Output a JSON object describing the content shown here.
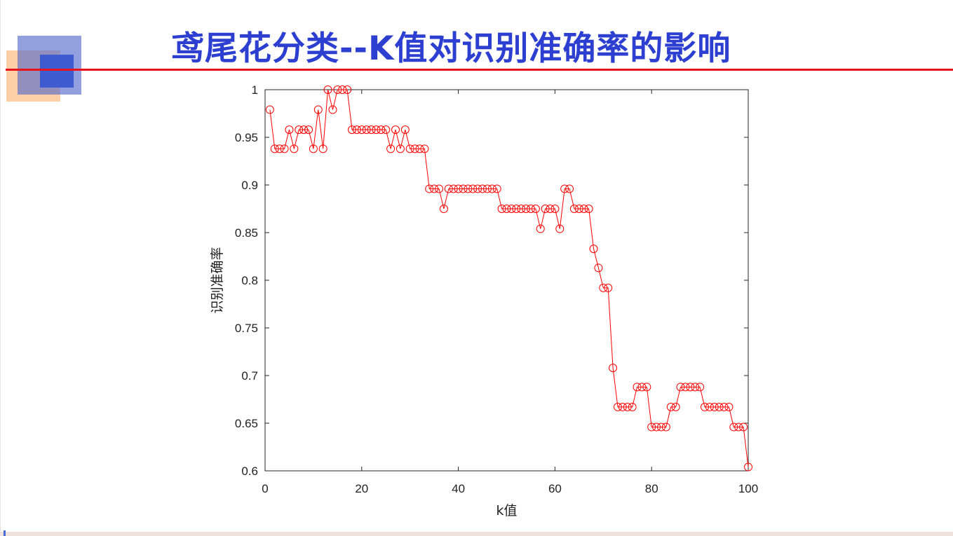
{
  "slide": {
    "title": "鸢尾花分类--K值对识别准确率的影响",
    "accent_color": "#e8141c",
    "title_color": "#2c3fd0"
  },
  "chart_data": {
    "type": "line",
    "title": "",
    "xlabel": "k值",
    "ylabel": "识别准确率",
    "xlim": [
      0,
      100
    ],
    "ylim": [
      0.6,
      1
    ],
    "x_ticks": [
      "0",
      "20",
      "40",
      "60",
      "80",
      "100"
    ],
    "y_ticks": [
      "0.6",
      "0.65",
      "0.7",
      "0.75",
      "0.8",
      "0.85",
      "0.9",
      "0.95",
      "1"
    ],
    "grid": false,
    "marker": "circle",
    "series_color": "#ff0000",
    "series": [
      {
        "x": [
          1,
          2,
          3,
          4,
          5,
          6,
          7,
          8,
          9,
          10,
          11,
          12,
          13,
          14,
          15,
          16,
          17,
          18,
          19,
          20,
          21,
          22,
          23,
          24,
          25,
          26,
          27,
          28,
          29,
          30,
          31,
          32,
          33,
          34,
          35,
          36,
          37,
          38,
          39,
          40,
          41,
          42,
          43,
          44,
          45,
          46,
          47,
          48,
          49,
          50,
          51,
          52,
          53,
          54,
          55,
          56,
          57,
          58,
          59,
          60,
          61,
          62,
          63,
          64,
          65,
          66,
          67,
          68,
          69,
          70,
          71,
          72,
          73,
          74,
          75,
          76,
          77,
          78,
          79,
          80,
          81,
          82,
          83,
          84,
          85,
          86,
          87,
          88,
          89,
          90,
          91,
          92,
          93,
          94,
          95,
          96,
          97,
          98,
          99,
          100
        ],
        "values": [
          0.979,
          0.938,
          0.938,
          0.938,
          0.958,
          0.938,
          0.958,
          0.958,
          0.958,
          0.938,
          0.979,
          0.938,
          1.0,
          0.979,
          1.0,
          1.0,
          1.0,
          0.958,
          0.958,
          0.958,
          0.958,
          0.958,
          0.958,
          0.958,
          0.958,
          0.938,
          0.958,
          0.938,
          0.958,
          0.938,
          0.938,
          0.938,
          0.938,
          0.896,
          0.896,
          0.896,
          0.875,
          0.896,
          0.896,
          0.896,
          0.896,
          0.896,
          0.896,
          0.896,
          0.896,
          0.896,
          0.896,
          0.896,
          0.875,
          0.875,
          0.875,
          0.875,
          0.875,
          0.875,
          0.875,
          0.875,
          0.854,
          0.875,
          0.875,
          0.875,
          0.854,
          0.896,
          0.896,
          0.875,
          0.875,
          0.875,
          0.875,
          0.833,
          0.813,
          0.792,
          0.792,
          0.708,
          0.667,
          0.667,
          0.667,
          0.667,
          0.688,
          0.688,
          0.688,
          0.646,
          0.646,
          0.646,
          0.646,
          0.667,
          0.667,
          0.688,
          0.688,
          0.688,
          0.688,
          0.688,
          0.667,
          0.667,
          0.667,
          0.667,
          0.667,
          0.667,
          0.646,
          0.646,
          0.646,
          0.604
        ]
      }
    ]
  }
}
